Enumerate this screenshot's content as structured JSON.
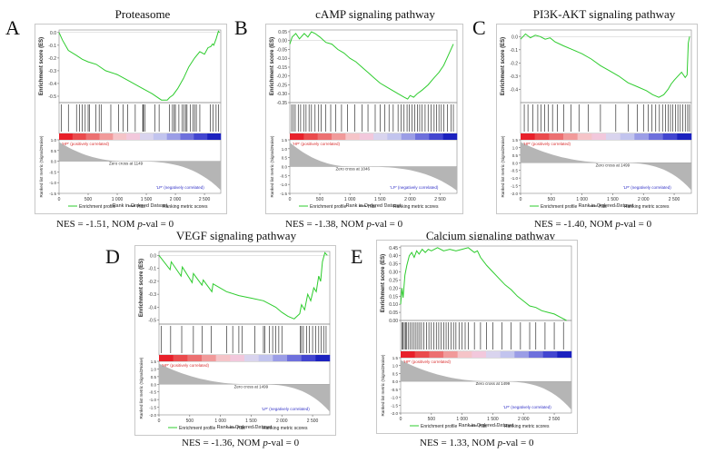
{
  "chart_data": [
    {
      "type": "line",
      "panel": "A",
      "title": "Proteasome",
      "ylabel": "Enrichment score (ES)",
      "rank_ylabel": "Ranked list metric (Signal2Noise)",
      "xlabel": "Rank in Ordered Dataset",
      "es_ylim": [
        -0.55,
        0.02
      ],
      "es_ticks": [
        "0.0",
        "-0.1",
        "-0.2",
        "-0.3",
        "-0.4",
        "-0.5"
      ],
      "es_tick_values": [
        0.0,
        -0.1,
        -0.2,
        -0.3,
        -0.4,
        -0.5
      ],
      "rank_ylim": [
        -1.5,
        1.0
      ],
      "rank_ticks": [
        "1.0",
        "0.5",
        "0.0",
        "-0.5",
        "-1.0",
        "-1.5"
      ],
      "rank_tick_values": [
        1.0,
        0.5,
        0.0,
        -0.5,
        -1.0,
        -1.5
      ],
      "xlim": [
        0,
        2780
      ],
      "x_ticks": [
        "0",
        "500",
        "1 000",
        "1 500",
        "2 000",
        "2 500"
      ],
      "x_tick_values": [
        0,
        500,
        1000,
        1500,
        2000,
        2500
      ],
      "zero_cross": 1149,
      "zero_cross_label": "Zero cross at 1149",
      "pos_label": "'HP' (positively correlated)",
      "neg_label": "'LP' (negatively correlated)",
      "legend": [
        "Enrichment profile",
        "Hits",
        "Ranking metric scores"
      ],
      "hits": [
        40,
        160,
        300,
        350,
        400,
        450,
        500,
        520,
        630,
        690,
        730,
        890,
        1020,
        1100,
        1180,
        1310,
        1440,
        1450,
        1480,
        1650,
        1720,
        1900,
        1950,
        1980,
        2000,
        2060,
        2120,
        2150,
        2180,
        2200,
        2260,
        2300,
        2330,
        2360,
        2420,
        2600,
        2650,
        2700,
        2740
      ],
      "es_x": [
        0,
        60,
        160,
        300,
        400,
        500,
        640,
        800,
        1000,
        1200,
        1400,
        1600,
        1760,
        1860,
        1900,
        1960,
        2040,
        2140,
        2230,
        2330,
        2420,
        2500,
        2560,
        2610,
        2640,
        2660,
        2700,
        2740,
        2760
      ],
      "es_y": [
        0.0,
        -0.06,
        -0.14,
        -0.18,
        -0.21,
        -0.23,
        -0.25,
        -0.3,
        -0.33,
        -0.38,
        -0.43,
        -0.48,
        -0.53,
        -0.53,
        -0.51,
        -0.49,
        -0.44,
        -0.36,
        -0.27,
        -0.2,
        -0.15,
        -0.17,
        -0.12,
        -0.11,
        -0.09,
        -0.1,
        -0.05,
        0.01,
        0.0
      ],
      "nes_label": "NES = -1.51, NOM ",
      "p_label": "p",
      "pval_label": "-val = 0"
    },
    {
      "type": "line",
      "panel": "B",
      "title": "cAMP signaling pathway",
      "ylabel": "Enrichment score (ES)",
      "rank_ylabel": "Ranked list metric (Signal2Noise)",
      "xlabel": "Rank in Ordered Dataset",
      "es_ylim": [
        -0.35,
        0.06
      ],
      "es_ticks": [
        "0.05",
        "0.00",
        "-0.05",
        "-0.10",
        "-0.15",
        "-0.20",
        "-0.25",
        "-0.30",
        "-0.35"
      ],
      "es_tick_values": [
        0.05,
        0.0,
        -0.05,
        -0.1,
        -0.15,
        -0.2,
        -0.25,
        -0.3,
        -0.35
      ],
      "rank_ylim": [
        -1.5,
        1.5
      ],
      "rank_ticks": [
        "1.5",
        "1.0",
        "0.5",
        "0.0",
        "-0.5",
        "-1.0",
        "-1.5"
      ],
      "rank_tick_values": [
        1.5,
        1.0,
        0.5,
        0.0,
        -0.5,
        -1.0,
        -1.5
      ],
      "xlim": [
        0,
        2780
      ],
      "x_ticks": [
        "0",
        "500",
        "1 000",
        "1 500",
        "2 000",
        "2 500"
      ],
      "x_tick_values": [
        0,
        500,
        1000,
        1500,
        2000,
        2500
      ],
      "zero_cross": 1046,
      "zero_cross_label": "Zero cross at 1046",
      "pos_label": "'HP' (positively correlated)",
      "neg_label": "'LP' (negatively correlated)",
      "legend": [
        "Enrichment profile",
        "Hits",
        "Ranking metric scores"
      ],
      "hits": [
        30,
        60,
        90,
        140,
        180,
        230,
        270,
        320,
        360,
        420,
        480,
        520,
        600,
        680,
        760,
        860,
        960,
        1080,
        1200,
        1300,
        1420,
        1500,
        1580,
        1650,
        1720,
        1800,
        1850,
        1900,
        1950,
        1990,
        2030,
        2080,
        2120,
        2160,
        2200,
        2250,
        2300,
        2350,
        2400,
        2440,
        2480,
        2520,
        2560,
        2620,
        2680,
        2720
      ],
      "es_x": [
        0,
        40,
        100,
        160,
        240,
        300,
        360,
        420,
        500,
        600,
        700,
        800,
        900,
        1000,
        1100,
        1200,
        1300,
        1400,
        1500,
        1600,
        1700,
        1800,
        1900,
        1960,
        2000,
        2060,
        2120,
        2200,
        2300,
        2400,
        2480,
        2560,
        2640,
        2720
      ],
      "es_y": [
        -0.02,
        0.02,
        0.04,
        0.01,
        0.04,
        0.02,
        0.05,
        0.04,
        0.02,
        -0.01,
        -0.02,
        -0.05,
        -0.07,
        -0.1,
        -0.12,
        -0.15,
        -0.18,
        -0.21,
        -0.24,
        -0.26,
        -0.28,
        -0.3,
        -0.32,
        -0.33,
        -0.31,
        -0.32,
        -0.3,
        -0.28,
        -0.25,
        -0.21,
        -0.18,
        -0.14,
        -0.08,
        -0.02
      ],
      "nes_label": "NES = -1.38, NOM ",
      "p_label": "p",
      "pval_label": "-val = 0"
    },
    {
      "type": "line",
      "panel": "C",
      "title": "PI3K-AKT signaling pathway",
      "ylabel": "Enrichment score (ES)",
      "rank_ylabel": "Ranked list metric (Signal2Noise)",
      "xlabel": "Rank in Ordered Dataset",
      "es_ylim": [
        -0.5,
        0.05
      ],
      "es_ticks": [
        "0.0",
        "-0.1",
        "-0.2",
        "-0.3",
        "-0.4"
      ],
      "es_tick_values": [
        0.0,
        -0.1,
        -0.2,
        -0.3,
        -0.4
      ],
      "rank_ylim": [
        -2.0,
        1.5
      ],
      "rank_ticks": [
        "1.5",
        "1.0",
        "0.5",
        "0.0",
        "-0.5",
        "-1.0",
        "-1.5",
        "-2.0"
      ],
      "rank_tick_values": [
        1.5,
        1.0,
        0.5,
        0.0,
        -0.5,
        -1.0,
        -1.5,
        -2.0
      ],
      "xlim": [
        0,
        2780
      ],
      "x_ticks": [
        "0",
        "500",
        "1 000",
        "1 500",
        "2 000",
        "2 500"
      ],
      "x_tick_values": [
        0,
        500,
        1000,
        1500,
        2000,
        2500
      ],
      "zero_cross": 1499,
      "zero_cross_label": "Zero cross at 1499",
      "pos_label": "'HP' (positively correlated)",
      "neg_label": "'LP' (negatively correlated)",
      "legend": [
        "Enrichment profile",
        "Hits",
        "Ranking metric scores"
      ],
      "hits": [
        60,
        120,
        200,
        280,
        330,
        390,
        450,
        520,
        600,
        700,
        820,
        950,
        1100,
        1300,
        1550,
        1750,
        1900,
        2000,
        2080,
        2140,
        2200,
        2260,
        2310,
        2360,
        2400,
        2440,
        2480,
        2520,
        2560,
        2600,
        2640,
        2680,
        2720,
        2750
      ],
      "es_x": [
        0,
        80,
        160,
        240,
        320,
        400,
        480,
        560,
        700,
        850,
        1000,
        1150,
        1300,
        1450,
        1600,
        1750,
        1900,
        2050,
        2150,
        2250,
        2330,
        2400,
        2450,
        2500,
        2560,
        2620,
        2680,
        2710,
        2730,
        2750
      ],
      "es_y": [
        -0.02,
        0.02,
        -0.01,
        0.01,
        0.0,
        -0.02,
        -0.01,
        -0.04,
        -0.07,
        -0.1,
        -0.13,
        -0.17,
        -0.22,
        -0.26,
        -0.3,
        -0.35,
        -0.38,
        -0.41,
        -0.44,
        -0.46,
        -0.44,
        -0.4,
        -0.36,
        -0.33,
        -0.3,
        -0.27,
        -0.31,
        -0.29,
        -0.05,
        0.0
      ],
      "nes_label": "NES = -1.40, NOM ",
      "p_label": "p",
      "pval_label": "-val = 0"
    },
    {
      "type": "line",
      "panel": "D",
      "title": "VEGF signaling pathway",
      "ylabel": "Enrichment score (ES)",
      "rank_ylabel": "Ranked list metric (Signal2Noise)",
      "xlabel": "Rank in Ordered Dataset",
      "es_ylim": [
        -0.53,
        0.03
      ],
      "es_ticks": [
        "0.0",
        "-0.1",
        "-0.2",
        "-0.3",
        "-0.4",
        "-0.5"
      ],
      "es_tick_values": [
        0.0,
        -0.1,
        -0.2,
        -0.3,
        -0.4,
        -0.5
      ],
      "rank_ylim": [
        -2.0,
        1.5
      ],
      "rank_ticks": [
        "1.5",
        "1.0",
        "0.5",
        "0.0",
        "-0.5",
        "-1.0",
        "-1.5",
        "-2.0"
      ],
      "rank_tick_values": [
        1.5,
        1.0,
        0.5,
        0.0,
        -0.5,
        -1.0,
        -1.5,
        -2.0
      ],
      "xlim": [
        0,
        2780
      ],
      "x_ticks": [
        "0",
        "500",
        "1 000",
        "1 500",
        "2 000",
        "2 500"
      ],
      "x_tick_values": [
        0,
        500,
        1000,
        1500,
        2000,
        2500
      ],
      "zero_cross": 1499,
      "zero_cross_label": "Zero cross at 1499",
      "pos_label": "'HP' (positively correlated)",
      "neg_label": "'LP' (negatively correlated)",
      "legend": [
        "Enrichment profile",
        "Hits",
        "Ranking metric scores"
      ],
      "hits": [
        40,
        190,
        370,
        560,
        700,
        850,
        1100,
        1200,
        1300,
        1350,
        1560,
        1700,
        1720,
        1800,
        1850,
        1900,
        1950,
        2000,
        2300,
        2320,
        2350,
        2400,
        2450,
        2500,
        2550,
        2600,
        2640,
        2680,
        2720
      ],
      "es_x": [
        0,
        180,
        200,
        360,
        380,
        540,
        560,
        700,
        720,
        860,
        880,
        1100,
        1300,
        1500,
        1700,
        1900,
        2000,
        2100,
        2200,
        2290,
        2320,
        2370,
        2420,
        2470,
        2520,
        2560,
        2600,
        2630,
        2660,
        2700,
        2740
      ],
      "es_y": [
        0.0,
        -0.11,
        -0.05,
        -0.16,
        -0.09,
        -0.21,
        -0.14,
        -0.23,
        -0.19,
        -0.28,
        -0.22,
        -0.28,
        -0.31,
        -0.33,
        -0.35,
        -0.4,
        -0.44,
        -0.47,
        -0.49,
        -0.45,
        -0.38,
        -0.42,
        -0.3,
        -0.35,
        -0.25,
        -0.28,
        -0.16,
        -0.2,
        -0.05,
        0.02,
        0.0
      ],
      "nes_label": "NES = -1.36, NOM ",
      "p_label": "p",
      "pval_label": "-val = 0"
    },
    {
      "type": "line",
      "panel": "E",
      "title": "Calcium signaling pathway",
      "ylabel": "Enrichment score (ES)",
      "rank_ylabel": "Ranked list metric (Signal2Noise)",
      "xlabel": "Rank in Ordered Dataset",
      "es_ylim": [
        0.0,
        0.46
      ],
      "es_ticks": [
        "0.45",
        "0.40",
        "0.35",
        "0.30",
        "0.25",
        "0.20",
        "0.15",
        "0.10",
        "0.05",
        "0.00"
      ],
      "es_tick_values": [
        0.45,
        0.4,
        0.35,
        0.3,
        0.25,
        0.2,
        0.15,
        0.1,
        0.05,
        0.0
      ],
      "rank_ylim": [
        -2.0,
        1.5
      ],
      "rank_ticks": [
        "1.5",
        "1.0",
        "0.5",
        "0.0",
        "-0.5",
        "-1.0",
        "-1.5",
        "-2.0"
      ],
      "rank_tick_values": [
        1.5,
        1.0,
        0.5,
        0.0,
        -0.5,
        -1.0,
        -1.5,
        -2.0
      ],
      "xlim": [
        0,
        2780
      ],
      "x_ticks": [
        "0",
        "500",
        "1 000",
        "1 500",
        "2 000",
        "2 500"
      ],
      "x_tick_values": [
        0,
        500,
        1000,
        1500,
        2000,
        2500
      ],
      "zero_cross": 1499,
      "zero_cross_label": "Zero cross at 1499",
      "pos_label": "'HP' (positively correlated)",
      "neg_label": "'LP' (negatively correlated)",
      "legend": [
        "Enrichment profile",
        "Hits",
        "Ranking metric scores"
      ],
      "hits": [
        20,
        40,
        60,
        80,
        100,
        130,
        160,
        190,
        220,
        250,
        280,
        310,
        340,
        380,
        420,
        460,
        500,
        540,
        580,
        620,
        660,
        700,
        740,
        780,
        820,
        860,
        900,
        950,
        1000,
        1050,
        1100,
        1200,
        1300,
        1400,
        1500,
        1650,
        1800,
        1950,
        2100,
        2200,
        2350,
        2500,
        2650
      ],
      "es_x": [
        0,
        20,
        40,
        70,
        100,
        140,
        180,
        220,
        260,
        300,
        350,
        400,
        450,
        500,
        600,
        700,
        800,
        900,
        1000,
        1100,
        1200,
        1250,
        1300,
        1400,
        1500,
        1600,
        1700,
        1800,
        1900,
        2000,
        2100,
        2200,
        2300,
        2400,
        2500,
        2600,
        2700
      ],
      "es_y": [
        0.1,
        0.2,
        0.14,
        0.28,
        0.34,
        0.4,
        0.42,
        0.39,
        0.43,
        0.41,
        0.44,
        0.42,
        0.44,
        0.43,
        0.45,
        0.43,
        0.44,
        0.43,
        0.44,
        0.45,
        0.42,
        0.43,
        0.39,
        0.34,
        0.3,
        0.26,
        0.22,
        0.19,
        0.15,
        0.12,
        0.09,
        0.08,
        0.06,
        0.05,
        0.04,
        0.02,
        0.0
      ],
      "nes_label": "NES = 1.33, NOM ",
      "p_label": "p",
      "pval_label": "-val = 0"
    }
  ]
}
